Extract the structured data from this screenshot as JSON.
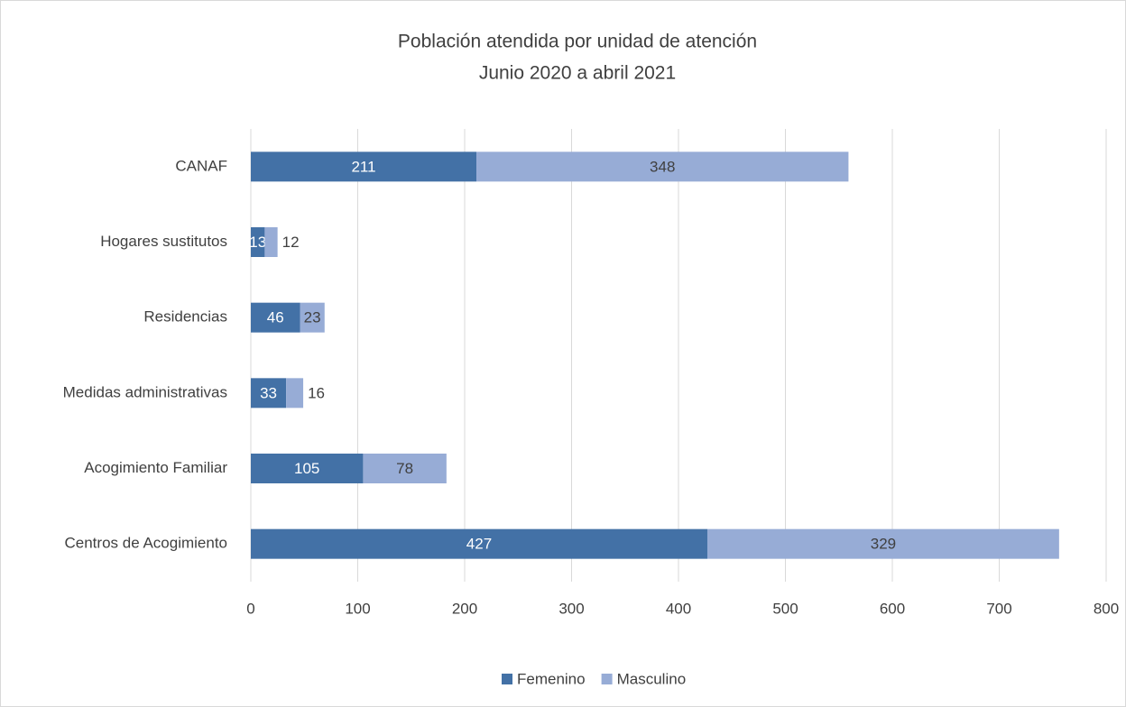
{
  "chart_data": {
    "type": "stacked-barh",
    "title": "Población atendida por unidad de atención",
    "subtitle": "Junio 2020 a abril 2021",
    "categories": [
      "CANAF",
      "Hogares sustitutos",
      "Residencias",
      "Medidas administrativas",
      "Acogimiento Familiar",
      "Centros de Acogimiento"
    ],
    "series": [
      {
        "name": "Femenino",
        "color": "#4371a6",
        "values": [
          211,
          13,
          46,
          33,
          105,
          427
        ]
      },
      {
        "name": "Masculino",
        "color": "#97acd6",
        "values": [
          348,
          12,
          23,
          16,
          78,
          329
        ]
      }
    ],
    "xlim": [
      0,
      800
    ],
    "xticks": [
      0,
      100,
      200,
      300,
      400,
      500,
      600,
      700,
      800
    ],
    "grid": true,
    "legend": "bottom"
  }
}
